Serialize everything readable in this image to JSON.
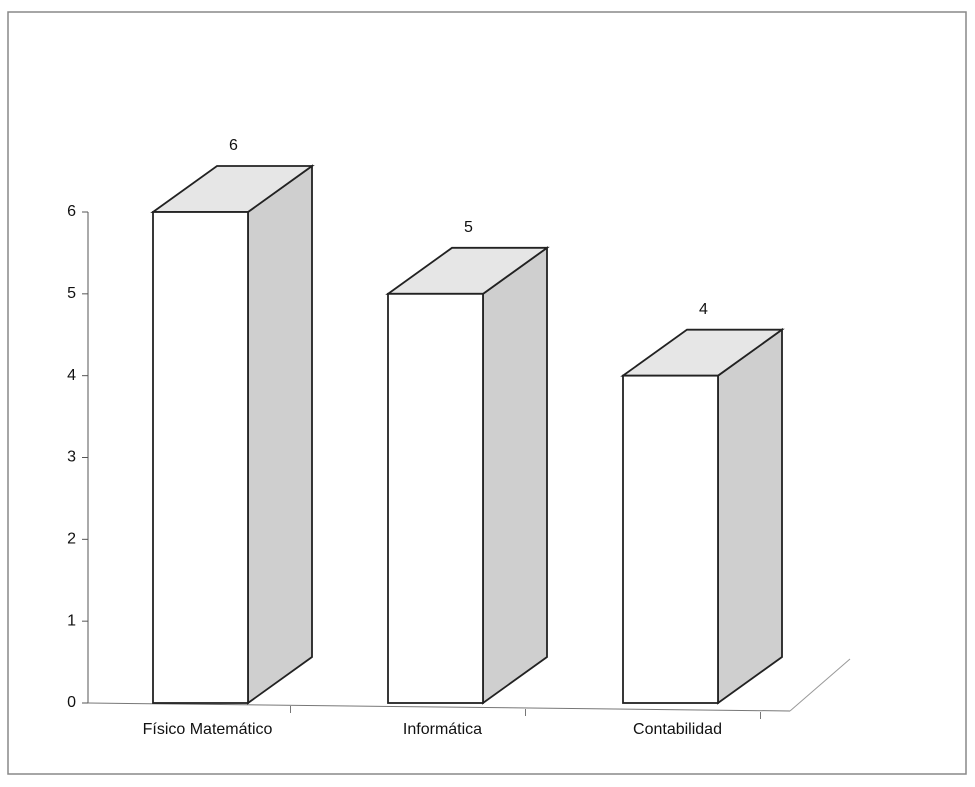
{
  "chart_data": {
    "type": "bar3d",
    "categories": [
      "Físico Matemático",
      "Informática",
      "Contabilidad"
    ],
    "values": [
      6,
      5,
      4
    ],
    "ylim": [
      0,
      6
    ],
    "yticks": [
      0,
      1,
      2,
      3,
      4,
      5,
      6
    ],
    "color": "#ffffff",
    "side_color": "#cfcfcf",
    "top_color": "#e6e6e6"
  }
}
